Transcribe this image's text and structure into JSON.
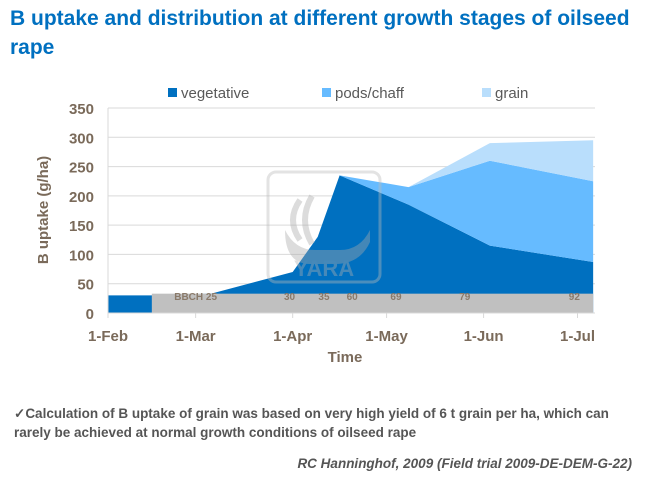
{
  "title": "B uptake and distribution at different growth stages of oilseed rape",
  "note": "Calculation of B uptake of grain was based on very high yield of 6 t grain per ha, which can rarely be achieved at normal growth conditions of oilseed rape",
  "note_icon": "checkmark-icon",
  "source": "RC Hanninghof, 2009 (Field trial 2009-DE-DEM-G-22)",
  "watermark": "YARA",
  "chart_data": {
    "type": "area",
    "stacked": true,
    "xlabel": "Time",
    "ylabel": "B uptake (g/ha)",
    "ylim": [
      0,
      350
    ],
    "yticks": [
      0,
      50,
      100,
      150,
      200,
      250,
      300,
      350
    ],
    "xticks": [
      "1-Feb",
      "1-Mar",
      "1-Apr",
      "1-May",
      "1-Jun",
      "1-Jul"
    ],
    "grid": true,
    "legend": "top",
    "x": [
      "1-Feb",
      "15-Feb",
      "6-Mar",
      "1-Apr",
      "9-Apr",
      "16-Apr",
      "8-May",
      "3-Jun",
      "6-Jul"
    ],
    "series": [
      {
        "name": "vegetative",
        "color": "#0070c0",
        "values": [
          30,
          30,
          33,
          70,
          130,
          235,
          185,
          115,
          87
        ]
      },
      {
        "name": "pods/chaff",
        "color": "#66bbff",
        "values": [
          0,
          0,
          0,
          0,
          0,
          0,
          30,
          145,
          138
        ]
      },
      {
        "name": "grain",
        "color": "#b9defc",
        "values": [
          0,
          0,
          0,
          0,
          0,
          0,
          0,
          30,
          70
        ]
      }
    ],
    "growth_stages": {
      "band_color": "#c0c0c0",
      "band_range": [
        "15-Feb",
        "6-Jul"
      ],
      "band_height": 33,
      "labels": [
        {
          "date": "1-Mar",
          "text": "BBCH 25"
        },
        {
          "date": "31-Mar",
          "text": "30"
        },
        {
          "date": "11-Apr",
          "text": "35"
        },
        {
          "date": "20-Apr",
          "text": "60"
        },
        {
          "date": "4-May",
          "text": "69"
        },
        {
          "date": "26-May",
          "text": "79"
        },
        {
          "date": "30-Jun",
          "text": "92"
        }
      ]
    }
  }
}
